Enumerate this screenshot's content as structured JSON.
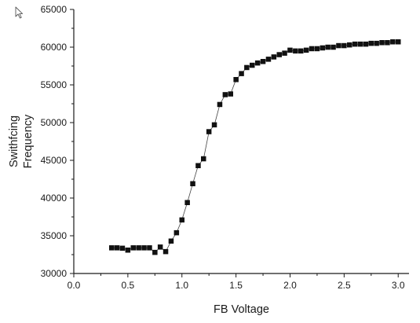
{
  "chart_data": {
    "type": "scatter",
    "title": "",
    "xlabel": "FB Voltage",
    "ylabel": "Swithfcing Frequency",
    "ylabel_lines": [
      "Swithfcing",
      "Frequency"
    ],
    "xlim": [
      0.0,
      3.1
    ],
    "ylim": [
      30000,
      65000
    ],
    "x_ticks": [
      0.0,
      0.5,
      1.0,
      1.5,
      2.0,
      2.5,
      3.0
    ],
    "x_tick_labels": [
      "0.0",
      "0.5",
      "1.0",
      "1.5",
      "2.0",
      "2.5",
      "3.0"
    ],
    "y_ticks": [
      30000,
      35000,
      40000,
      45000,
      50000,
      55000,
      60000,
      65000
    ],
    "y_tick_labels": [
      "30000",
      "35000",
      "40000",
      "45000",
      "50000",
      "55000",
      "60000",
      "65000"
    ],
    "grid": false,
    "legend": "none",
    "marker": "square",
    "colors": {
      "marker": "#111111",
      "line": "#444444",
      "axis": "#1a1a1a"
    },
    "series": [
      {
        "x": [
          0.35,
          0.4,
          0.45,
          0.5,
          0.55,
          0.6,
          0.65,
          0.7,
          0.75,
          0.8,
          0.85,
          0.9,
          0.95,
          1.0,
          1.05,
          1.1,
          1.15,
          1.2,
          1.25,
          1.3,
          1.35,
          1.4,
          1.45,
          1.5,
          1.55,
          1.6,
          1.65,
          1.7,
          1.75,
          1.8,
          1.85,
          1.9,
          1.95,
          2.0,
          2.05,
          2.1,
          2.15,
          2.2,
          2.25,
          2.3,
          2.35,
          2.4,
          2.45,
          2.5,
          2.55,
          2.6,
          2.65,
          2.7,
          2.75,
          2.8,
          2.85,
          2.9,
          2.95,
          3.0
        ],
        "values": [
          33400,
          33400,
          33350,
          33100,
          33400,
          33400,
          33400,
          33400,
          32800,
          33500,
          32900,
          34300,
          35400,
          37100,
          39400,
          41900,
          44300,
          45200,
          48800,
          49700,
          52400,
          53700,
          53800,
          55700,
          56500,
          57300,
          57600,
          57900,
          58100,
          58400,
          58700,
          59000,
          59200,
          59600,
          59500,
          59500,
          59600,
          59800,
          59800,
          59900,
          60000,
          60000,
          60200,
          60200,
          60300,
          60400,
          60400,
          60400,
          60500,
          60500,
          60600,
          60600,
          60700,
          60700
        ]
      }
    ]
  }
}
